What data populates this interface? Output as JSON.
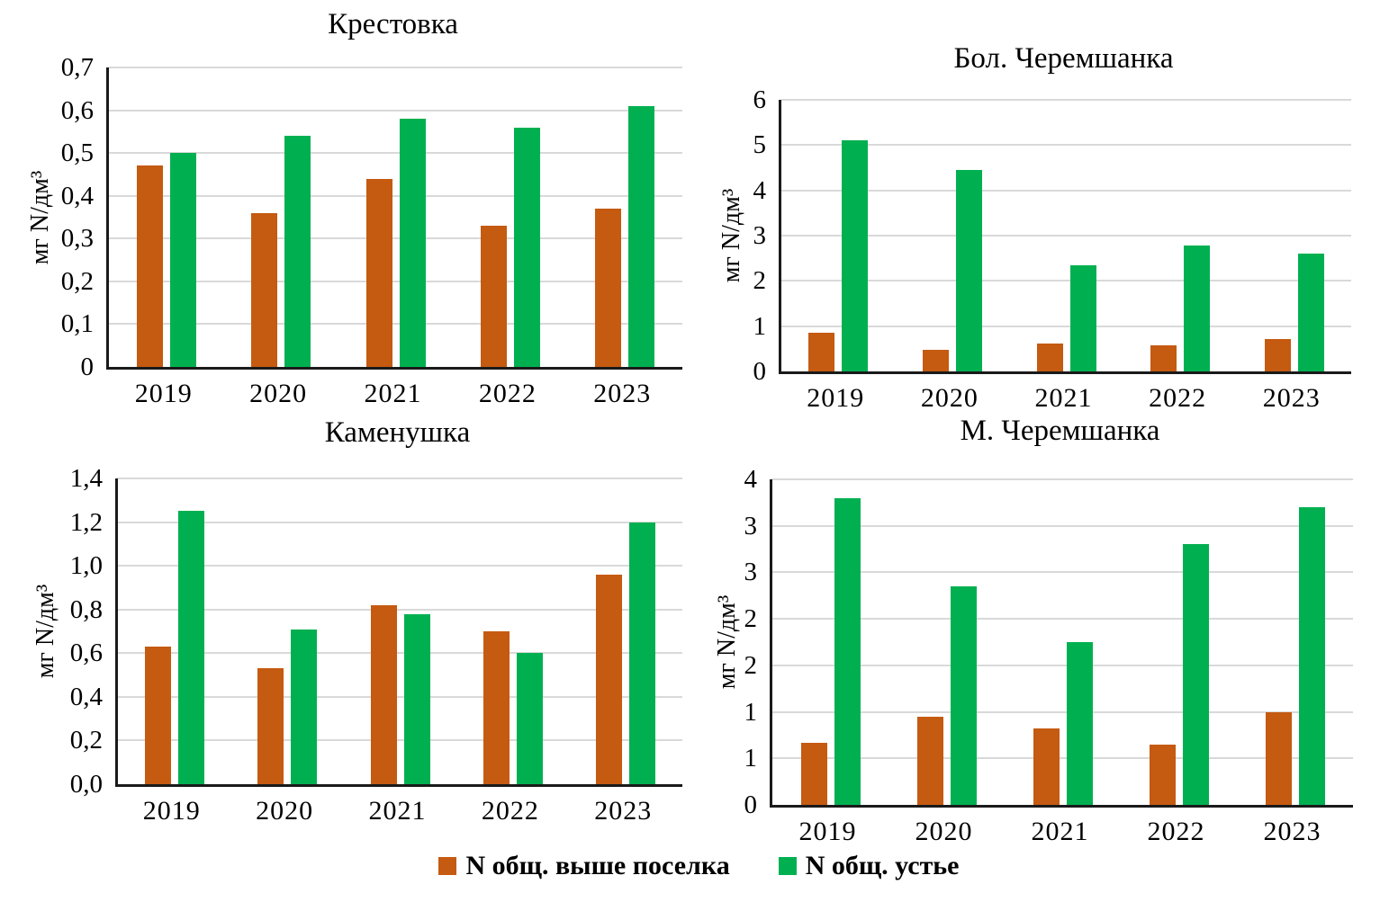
{
  "figure": {
    "type": "small-multiples-bar",
    "colors": {
      "bar_upstream_orange": "#C55A11",
      "bar_mouth_green": "#00B050",
      "gridline": "#D9D9D9",
      "axis": "#1A1A1A",
      "text": "#000000"
    },
    "legend": {
      "position": "bottom-center",
      "items": [
        {
          "label": "N общ. выше поселка",
          "color": "#C55A11"
        },
        {
          "label": "N общ. устье",
          "color": "#00B050"
        }
      ]
    }
  },
  "chart_data": [
    {
      "type": "bar",
      "title": "Крестовка",
      "ylabel": "мг N/дм³",
      "xlabel": "",
      "categories": [
        "2019",
        "2020",
        "2021",
        "2022",
        "2023"
      ],
      "series": [
        {
          "name": "N общ. выше поселка",
          "color": "#C55A11",
          "values": [
            0.47,
            0.36,
            0.44,
            0.33,
            0.37
          ]
        },
        {
          "name": "N общ. устье",
          "color": "#00B050",
          "values": [
            0.5,
            0.54,
            0.58,
            0.56,
            0.61
          ]
        }
      ],
      "ylim": [
        0,
        0.7
      ],
      "ytick_values": [
        0,
        0.1,
        0.2,
        0.3,
        0.4,
        0.5,
        0.6,
        0.7
      ],
      "ytick_labels": [
        "0",
        "0,1",
        "0,2",
        "0,3",
        "0,4",
        "0,5",
        "0,6",
        "0,7"
      ],
      "grid": true,
      "legend_position": "shared-bottom"
    },
    {
      "type": "bar",
      "title": "Бол. Черемшанка",
      "ylabel": "мг N/дм³",
      "xlabel": "",
      "categories": [
        "2019",
        "2020",
        "2021",
        "2022",
        "2023"
      ],
      "series": [
        {
          "name": "N общ. выше поселка",
          "color": "#C55A11",
          "values": [
            0.85,
            0.47,
            0.62,
            0.58,
            0.72
          ]
        },
        {
          "name": "N общ. устье",
          "color": "#00B050",
          "values": [
            5.1,
            4.45,
            2.35,
            2.78,
            2.6
          ]
        }
      ],
      "ylim": [
        0,
        6
      ],
      "ytick_values": [
        0,
        1,
        2,
        3,
        4,
        5,
        6
      ],
      "ytick_labels": [
        "0",
        "1",
        "2",
        "3",
        "4",
        "5",
        "6"
      ],
      "grid": true,
      "legend_position": "shared-bottom"
    },
    {
      "type": "bar",
      "title": "Каменушка",
      "ylabel": "мг N/дм³",
      "xlabel": "",
      "categories": [
        "2019",
        "2020",
        "2021",
        "2022",
        "2023"
      ],
      "series": [
        {
          "name": "N общ. выше поселка",
          "color": "#C55A11",
          "values": [
            0.63,
            0.53,
            0.82,
            0.7,
            0.96
          ]
        },
        {
          "name": "N общ. устье",
          "color": "#00B050",
          "values": [
            1.25,
            0.71,
            0.78,
            0.6,
            1.2
          ]
        }
      ],
      "ylim": [
        0,
        1.4
      ],
      "ytick_values": [
        0,
        0.2,
        0.4,
        0.6,
        0.8,
        1.0,
        1.2,
        1.4
      ],
      "ytick_labels": [
        "0,0",
        "0,2",
        "0,4",
        "0,6",
        "0,8",
        "1,0",
        "1,2",
        "1,4"
      ],
      "grid": true,
      "legend_position": "shared-bottom"
    },
    {
      "type": "bar",
      "title": "М. Черемшанка",
      "ylabel": "мг N/дм³",
      "xlabel": "",
      "categories": [
        "2019",
        "2020",
        "2021",
        "2022",
        "2023"
      ],
      "series": [
        {
          "name": "N общ. выше поселка",
          "color": "#C55A11",
          "values": [
            0.67,
            0.95,
            0.82,
            0.65,
            1.0
          ]
        },
        {
          "name": "N общ. устье",
          "color": "#00B050",
          "values": [
            3.3,
            2.35,
            1.75,
            2.8,
            3.2
          ]
        }
      ],
      "ylim": [
        0,
        3.5
      ],
      "ytick_values": [
        0,
        0.5,
        1,
        1.5,
        2,
        2.5,
        3,
        3.5
      ],
      "ytick_labels": [
        "0",
        "1",
        "1",
        "2",
        "2",
        "3",
        "3",
        "4"
      ],
      "grid": true,
      "legend_position": "shared-bottom"
    }
  ]
}
